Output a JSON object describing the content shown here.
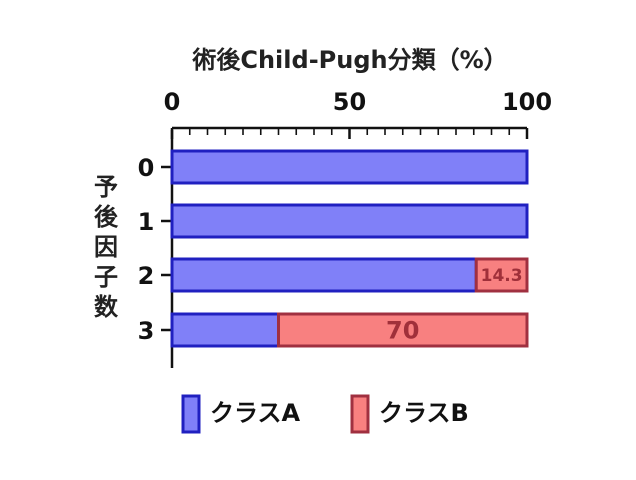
{
  "chart_data": {
    "type": "bar",
    "orientation": "horizontal",
    "stacked": true,
    "title": "術後Child-Pugh分類（%）",
    "ylabel": "予後因子数",
    "categories": [
      "0",
      "1",
      "2",
      "3"
    ],
    "series": [
      {
        "name": "クラスA",
        "values": [
          100,
          100,
          85.7,
          30
        ],
        "color": "#8080f8",
        "border": "#2020c0",
        "data_labels": [
          "",
          "",
          "",
          ""
        ]
      },
      {
        "name": "クラスB",
        "values": [
          0,
          0,
          14.3,
          70
        ],
        "color": "#f88080",
        "border": "#a03040",
        "data_labels": [
          "",
          "",
          "14.3",
          "70"
        ]
      }
    ],
    "xlim": [
      0,
      100
    ],
    "xticks": [
      "0",
      "50",
      "100"
    ],
    "x_axis_position": "top",
    "legend_position": "bottom"
  }
}
